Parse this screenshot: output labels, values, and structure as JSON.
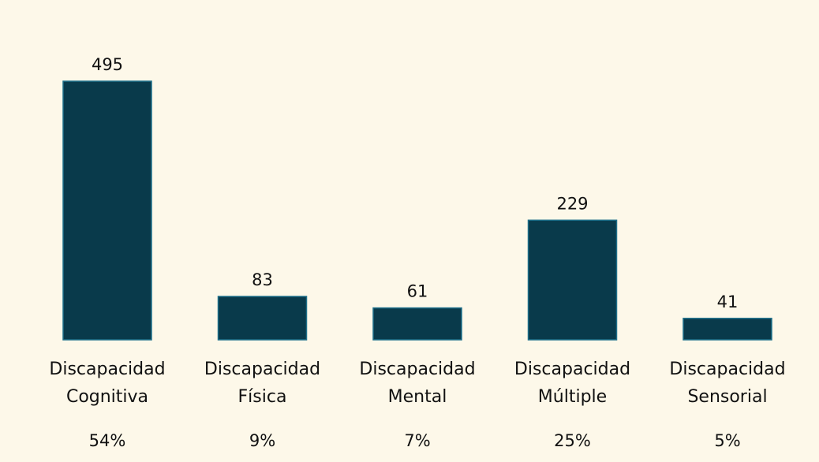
{
  "chart_data": {
    "type": "bar",
    "categories": [
      [
        "Discapacidad",
        "Cognitiva"
      ],
      [
        "Discapacidad",
        "Física"
      ],
      [
        "Discapacidad",
        "Mental"
      ],
      [
        "Discapacidad",
        "Múltiple"
      ],
      [
        "Discapacidad",
        "Sensorial"
      ]
    ],
    "values": [
      495,
      83,
      61,
      229,
      41
    ],
    "percentages": [
      "54%",
      "9%",
      "7%",
      "25%",
      "5%"
    ],
    "title": "",
    "xlabel": "",
    "ylabel": "",
    "ylim": [
      0,
      495
    ],
    "grid": false,
    "legend": "none",
    "colors": {
      "bar_fill": "#093a4b",
      "bar_stroke": "#1d6f8a",
      "background": "#fdf8e9",
      "text": "#111111"
    }
  }
}
